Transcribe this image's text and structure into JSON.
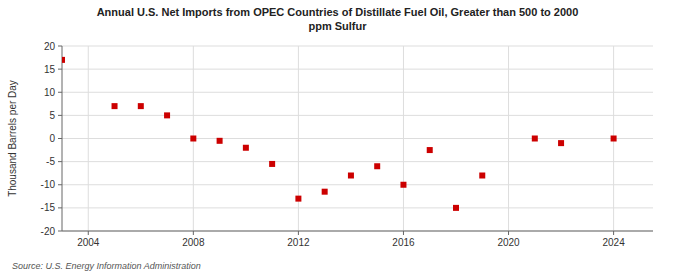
{
  "chart_data": {
    "type": "scatter",
    "title": "Annual U.S. Net Imports from OPEC Countries of Distillate Fuel Oil, Greater than 500 to 2000\nppm Sulfur",
    "y_label": "Thousand Barrels per Day",
    "annotations": [
      "Source: U.S. Energy Information Administration"
    ],
    "x": [
      2003,
      2005,
      2006,
      2007,
      2008,
      2009,
      2010,
      2011,
      2012,
      2013,
      2014,
      2015,
      2016,
      2017,
      2018,
      2019,
      2021,
      2022,
      2024
    ],
    "values": [
      17,
      7,
      7,
      5,
      0,
      -0.5,
      -2,
      -5.5,
      -13,
      -11.5,
      -8,
      -6,
      -10,
      -2.5,
      -15,
      -8,
      0,
      -1,
      0
    ],
    "color": "#cc0000",
    "marker": "square",
    "xlim": [
      2003,
      2025.5
    ],
    "ylim": [
      -20,
      20
    ],
    "xticks": [
      2004,
      2008,
      2012,
      2016,
      2020,
      2024
    ],
    "yticks": [
      -20,
      -15,
      -10,
      -5,
      0,
      5,
      10,
      15,
      20
    ],
    "grid": true
  }
}
